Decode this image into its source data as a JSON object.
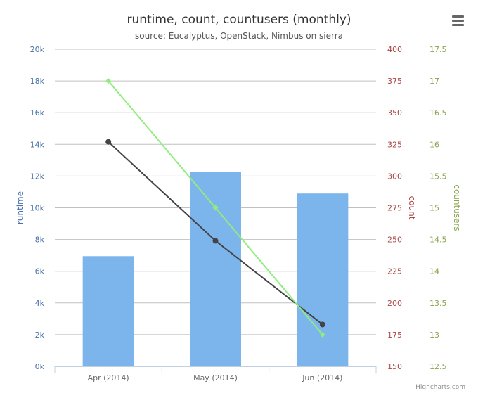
{
  "chart_data": {
    "type": "bar",
    "title": "runtime, count, countusers (monthly)",
    "subtitle": "source: Eucalyptus, OpenStack, Nimbus on sierra",
    "categories": [
      "Apr (2014)",
      "May (2014)",
      "Jun (2014)"
    ],
    "axes": {
      "runtime": {
        "label": "runtime",
        "color": "#4572a7",
        "range": [
          0,
          20000
        ],
        "ticks": [
          "0k",
          "2k",
          "4k",
          "6k",
          "8k",
          "10k",
          "12k",
          "14k",
          "16k",
          "18k",
          "20k"
        ]
      },
      "count": {
        "label": "count",
        "color": "#aa4643",
        "range": [
          150,
          400
        ],
        "ticks": [
          "150",
          "175",
          "200",
          "225",
          "250",
          "275",
          "300",
          "325",
          "350",
          "375",
          "400"
        ]
      },
      "countusers": {
        "label": "countusers",
        "color": "#89a54e",
        "range": [
          12.5,
          17.5
        ],
        "ticks": [
          "12.5",
          "13",
          "13.5",
          "14",
          "14.5",
          "15",
          "15.5",
          "16",
          "16.5",
          "17",
          "17.5"
        ]
      }
    },
    "series": [
      {
        "axis": "runtime",
        "type": "bar",
        "color": "#7cb5ec",
        "values": [
          6950,
          12250,
          10900
        ]
      },
      {
        "axis": "count",
        "type": "line",
        "color": "#434348",
        "values": [
          327,
          249,
          183
        ]
      },
      {
        "axis": "countusers",
        "type": "line",
        "color": "#90ed7d",
        "values": [
          17,
          15,
          13
        ]
      }
    ],
    "grid": true,
    "credits": "Highcharts.com"
  },
  "menu": {
    "icon": "menu-icon"
  }
}
